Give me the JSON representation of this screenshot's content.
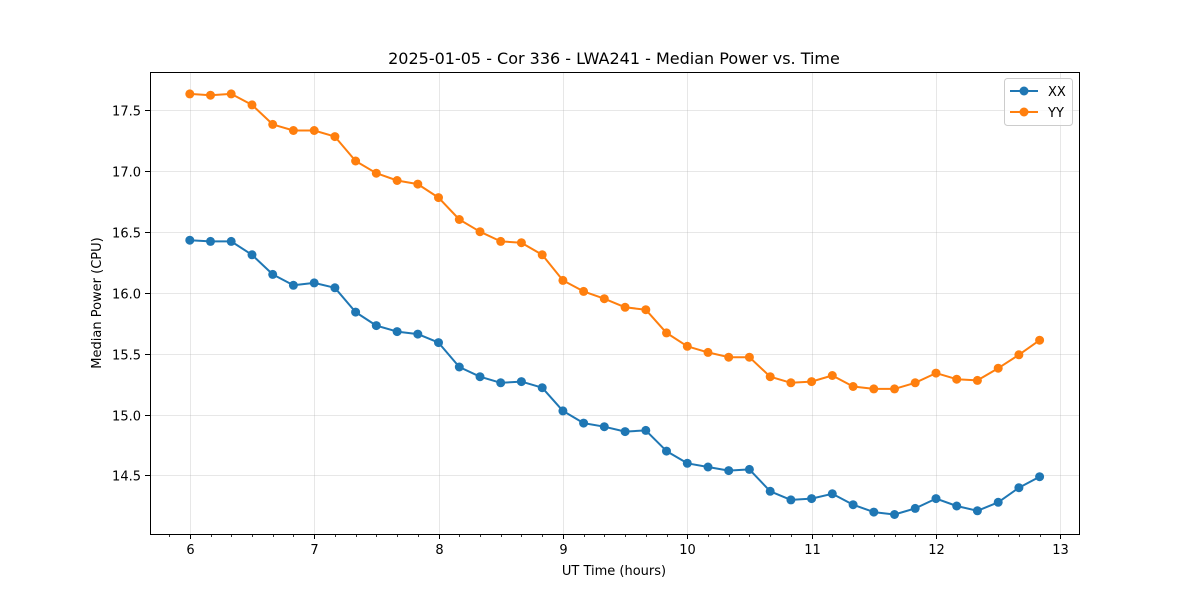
{
  "chart_data": {
    "type": "line",
    "title": "2025-01-05 - Cor 336 - LWA241 - Median Power vs. Time",
    "xlabel": "UT Time (hours)",
    "ylabel": "Median Power (CPU)",
    "xlim": [
      5.68,
      13.15
    ],
    "ylim": [
      14.02,
      17.81
    ],
    "xticks": [
      6,
      7,
      8,
      9,
      10,
      11,
      12,
      13
    ],
    "xtick_labels": [
      "6",
      "7",
      "8",
      "9",
      "10",
      "11",
      "12",
      "13"
    ],
    "yticks": [
      14.5,
      15.0,
      15.5,
      16.0,
      16.5,
      17.0,
      17.5
    ],
    "ytick_labels": [
      "14.5",
      "15.0",
      "15.5",
      "16.0",
      "16.5",
      "17.0",
      "17.5"
    ],
    "grid": true,
    "legend_position": "top-right",
    "x": [
      6.0,
      6.1667,
      6.3333,
      6.5,
      6.6667,
      6.8333,
      7.0,
      7.1667,
      7.3333,
      7.5,
      7.6667,
      7.8333,
      8.0,
      8.1667,
      8.3333,
      8.5,
      8.6667,
      8.8333,
      9.0,
      9.1667,
      9.3333,
      9.5,
      9.6667,
      9.8333,
      10.0,
      10.1667,
      10.3333,
      10.5,
      10.6667,
      10.8333,
      11.0,
      11.1667,
      11.3333,
      11.5,
      11.6667,
      11.8333,
      12.0,
      12.1667,
      12.3333,
      12.5,
      12.6667,
      12.8333
    ],
    "series": [
      {
        "name": "XX",
        "color": "#1f77b4",
        "values": [
          16.43,
          16.42,
          16.42,
          16.31,
          16.15,
          16.06,
          16.08,
          16.04,
          15.84,
          15.73,
          15.68,
          15.66,
          15.59,
          15.39,
          15.31,
          15.26,
          15.27,
          15.22,
          15.03,
          14.93,
          14.9,
          14.86,
          14.87,
          14.7,
          14.6,
          14.57,
          14.54,
          14.55,
          14.37,
          14.3,
          14.31,
          14.35,
          14.26,
          14.2,
          14.18,
          14.23,
          14.31,
          14.25,
          14.21,
          14.28,
          14.4,
          14.49
        ]
      },
      {
        "name": "YY",
        "color": "#ff7f0e",
        "values": [
          17.63,
          17.62,
          17.63,
          17.54,
          17.38,
          17.33,
          17.33,
          17.28,
          17.08,
          16.98,
          16.92,
          16.89,
          16.78,
          16.6,
          16.5,
          16.42,
          16.41,
          16.31,
          16.1,
          16.01,
          15.95,
          15.88,
          15.86,
          15.67,
          15.56,
          15.51,
          15.47,
          15.47,
          15.31,
          15.26,
          15.27,
          15.32,
          15.23,
          15.21,
          15.21,
          15.26,
          15.34,
          15.29,
          15.28,
          15.38,
          15.49,
          15.61
        ]
      }
    ]
  }
}
